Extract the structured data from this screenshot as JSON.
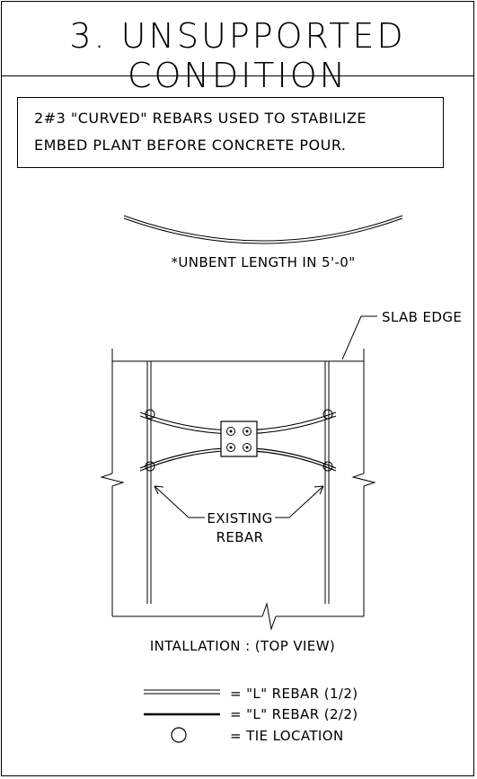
{
  "title": "3. UNSUPPORTED CONDITION",
  "note": {
    "line1": "2#3 \"CURVED\" REBARS USED TO STABILIZE",
    "line2": "EMBED PLANT BEFORE CONCRETE POUR."
  },
  "unbent_length_note": "*UNBENT LENGTH IN 5'-0\"",
  "labels": {
    "slab_edge": "SLAB EDGE",
    "existing_line1": "EXISTING",
    "existing_line2": "REBAR",
    "view_caption": "INTALLATION : (TOP VIEW)"
  },
  "legend": [
    {
      "symbol": "double-line",
      "text": "= \"L\" REBAR (1/2)"
    },
    {
      "symbol": "thick-line",
      "text": "= \"L\" REBAR (2/2)"
    },
    {
      "symbol": "circle",
      "text": "= TIE LOCATION"
    }
  ]
}
